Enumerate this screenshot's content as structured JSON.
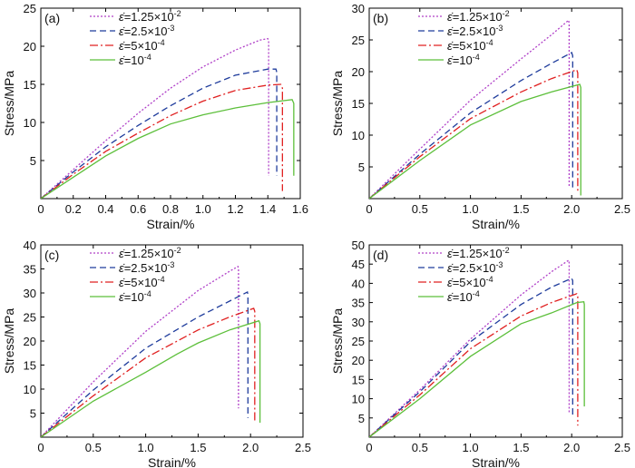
{
  "chart_data": [
    {
      "type": "line",
      "panel_label": "(a)",
      "xlabel": "Strain/%",
      "ylabel": "Stress/MPa",
      "xlim": [
        0,
        1.6
      ],
      "ylim": [
        0,
        25
      ],
      "xticks": [
        0,
        0.2,
        0.4,
        0.6,
        0.8,
        1.0,
        1.2,
        1.4,
        1.6
      ],
      "xtick_labels": [
        "0",
        "0.2",
        "0.4",
        "0.6",
        "0.8",
        "1.0",
        "1.2",
        "1.4",
        "1.6"
      ],
      "yticks": [
        5,
        10,
        15,
        20,
        25
      ],
      "ytick_labels": [
        "5",
        "10",
        "15",
        "20",
        "25"
      ],
      "series": [
        {
          "name": "1.25×10",
          "exp": "-2",
          "color": "#b040c8",
          "dash": "2,2",
          "points": [
            [
              0,
              0
            ],
            [
              0.2,
              3.8
            ],
            [
              0.4,
              7.6
            ],
            [
              0.6,
              11.2
            ],
            [
              0.8,
              14.5
            ],
            [
              1.0,
              17.3
            ],
            [
              1.2,
              19.5
            ],
            [
              1.35,
              20.8
            ],
            [
              1.4,
              21.0
            ],
            [
              1.405,
              20.7
            ],
            [
              1.405,
              3.0
            ]
          ]
        },
        {
          "name": "2.5×10",
          "exp": "-3",
          "color": "#1f3c9c",
          "dash": "7,4",
          "points": [
            [
              0,
              0
            ],
            [
              0.2,
              3.5
            ],
            [
              0.4,
              6.8
            ],
            [
              0.6,
              9.6
            ],
            [
              0.8,
              12.2
            ],
            [
              1.0,
              14.5
            ],
            [
              1.2,
              16.2
            ],
            [
              1.4,
              17.0
            ],
            [
              1.45,
              17.0
            ],
            [
              1.455,
              16.6
            ],
            [
              1.455,
              3.0
            ]
          ]
        },
        {
          "name": "5×10",
          "exp": "-4",
          "color": "#e02020",
          "dash": "9,3,2,3",
          "points": [
            [
              0,
              0
            ],
            [
              0.2,
              3.2
            ],
            [
              0.4,
              6.2
            ],
            [
              0.6,
              8.6
            ],
            [
              0.8,
              10.9
            ],
            [
              1.0,
              12.8
            ],
            [
              1.2,
              14.2
            ],
            [
              1.4,
              14.9
            ],
            [
              1.48,
              15.0
            ],
            [
              1.49,
              14.5
            ],
            [
              1.49,
              1.0
            ]
          ]
        },
        {
          "name": "10",
          "exp": "-4",
          "color": "#5cbf3a",
          "dash": "",
          "points": [
            [
              0,
              0
            ],
            [
              0.2,
              2.8
            ],
            [
              0.4,
              5.6
            ],
            [
              0.6,
              7.9
            ],
            [
              0.8,
              9.8
            ],
            [
              1.0,
              11.0
            ],
            [
              1.2,
              11.9
            ],
            [
              1.4,
              12.6
            ],
            [
              1.55,
              13.0
            ],
            [
              1.56,
              12.5
            ],
            [
              1.56,
              3.0
            ]
          ]
        }
      ]
    },
    {
      "type": "line",
      "panel_label": "(b)",
      "xlabel": "Strain/%",
      "ylabel": "Stress/MPa",
      "xlim": [
        0,
        2.5
      ],
      "ylim": [
        0,
        30
      ],
      "xticks": [
        0,
        0.5,
        1.0,
        1.5,
        2.0,
        2.5
      ],
      "xtick_labels": [
        "0",
        "0.5",
        "1.0",
        "1.5",
        "2.0",
        "2.5"
      ],
      "yticks": [
        5,
        10,
        15,
        20,
        25,
        30
      ],
      "ytick_labels": [
        "5",
        "10",
        "15",
        "20",
        "25",
        "30"
      ],
      "series": [
        {
          "name": "1.25×10",
          "exp": "-2",
          "color": "#b040c8",
          "dash": "2,2",
          "points": [
            [
              0,
              0
            ],
            [
              0.5,
              7.8
            ],
            [
              1.0,
              15.5
            ],
            [
              1.5,
              22.0
            ],
            [
              1.8,
              25.8
            ],
            [
              1.97,
              28.1
            ],
            [
              1.975,
              27.5
            ],
            [
              1.975,
              2.0
            ]
          ]
        },
        {
          "name": "2.5×10",
          "exp": "-3",
          "color": "#1f3c9c",
          "dash": "7,4",
          "points": [
            [
              0,
              0
            ],
            [
              0.5,
              7.0
            ],
            [
              1.0,
              13.5
            ],
            [
              1.5,
              18.6
            ],
            [
              1.8,
              21.3
            ],
            [
              2.0,
              23.0
            ],
            [
              2.01,
              22.5
            ],
            [
              2.01,
              1.5
            ]
          ]
        },
        {
          "name": "5×10",
          "exp": "-4",
          "color": "#e02020",
          "dash": "9,3,2,3",
          "points": [
            [
              0,
              0
            ],
            [
              0.5,
              6.6
            ],
            [
              1.0,
              12.6
            ],
            [
              1.5,
              16.8
            ],
            [
              1.8,
              18.9
            ],
            [
              2.05,
              20.3
            ],
            [
              2.06,
              19.8
            ],
            [
              2.06,
              1.0
            ]
          ]
        },
        {
          "name": "10",
          "exp": "-4",
          "color": "#5cbf3a",
          "dash": "",
          "points": [
            [
              0,
              0
            ],
            [
              0.5,
              6.0
            ],
            [
              1.0,
              11.6
            ],
            [
              1.5,
              15.3
            ],
            [
              1.8,
              16.8
            ],
            [
              2.08,
              18.0
            ],
            [
              2.09,
              17.5
            ],
            [
              2.09,
              0.5
            ]
          ]
        }
      ]
    },
    {
      "type": "line",
      "panel_label": "(c)",
      "xlabel": "Strain/%",
      "ylabel": "Stress/MPa",
      "xlim": [
        0,
        2.5
      ],
      "ylim": [
        0,
        40
      ],
      "xticks": [
        0,
        0.5,
        1.0,
        1.5,
        2.0,
        2.5
      ],
      "xtick_labels": [
        "0",
        "0.5",
        "1.0",
        "1.5",
        "2.0",
        "2.5"
      ],
      "yticks": [
        5,
        10,
        15,
        20,
        25,
        30,
        35,
        40
      ],
      "ytick_labels": [
        "5",
        "10",
        "15",
        "20",
        "25",
        "30",
        "35",
        "40"
      ],
      "series": [
        {
          "name": "1.25×10",
          "exp": "-2",
          "color": "#b040c8",
          "dash": "2,2",
          "points": [
            [
              0,
              0
            ],
            [
              0.5,
              11.5
            ],
            [
              1.0,
              22.0
            ],
            [
              1.5,
              30.5
            ],
            [
              1.8,
              34.5
            ],
            [
              1.88,
              35.5
            ],
            [
              1.885,
              35.0
            ],
            [
              1.885,
              6.0
            ]
          ]
        },
        {
          "name": "2.5×10",
          "exp": "-3",
          "color": "#1f3c9c",
          "dash": "7,4",
          "points": [
            [
              0,
              0
            ],
            [
              0.5,
              9.8
            ],
            [
              1.0,
              18.5
            ],
            [
              1.5,
              25.0
            ],
            [
              1.8,
              28.3
            ],
            [
              1.97,
              30.2
            ],
            [
              1.975,
              29.6
            ],
            [
              1.975,
              4.0
            ]
          ]
        },
        {
          "name": "5×10",
          "exp": "-4",
          "color": "#e02020",
          "dash": "9,3,2,3",
          "points": [
            [
              0,
              0
            ],
            [
              0.5,
              8.6
            ],
            [
              1.0,
              16.5
            ],
            [
              1.5,
              22.3
            ],
            [
              1.8,
              25.0
            ],
            [
              2.03,
              26.8
            ],
            [
              2.04,
              26.2
            ],
            [
              2.04,
              3.0
            ]
          ]
        },
        {
          "name": "10",
          "exp": "-4",
          "color": "#5cbf3a",
          "dash": "",
          "points": [
            [
              0,
              0
            ],
            [
              0.5,
              7.5
            ],
            [
              1.0,
              13.5
            ],
            [
              1.3,
              17.3
            ],
            [
              1.5,
              19.6
            ],
            [
              1.8,
              22.3
            ],
            [
              2.08,
              24.2
            ],
            [
              2.09,
              23.6
            ],
            [
              2.09,
              3.0
            ]
          ]
        }
      ]
    },
    {
      "type": "line",
      "panel_label": "(d)",
      "xlabel": "Strain/%",
      "ylabel": "Stress/MPa",
      "xlim": [
        0,
        2.5
      ],
      "ylim": [
        0,
        50
      ],
      "xticks": [
        0,
        0.5,
        1.0,
        1.5,
        2.0,
        2.5
      ],
      "xtick_labels": [
        "0",
        "0.5",
        "1.0",
        "1.5",
        "2.0",
        "2.5"
      ],
      "yticks": [
        5,
        10,
        15,
        20,
        25,
        30,
        35,
        40,
        45,
        50
      ],
      "ytick_labels": [
        "5",
        "10",
        "15",
        "20",
        "25",
        "30",
        "35",
        "40",
        "45",
        "50"
      ],
      "series": [
        {
          "name": "1.25×10",
          "exp": "-2",
          "color": "#b040c8",
          "dash": "2,2",
          "points": [
            [
              0,
              0
            ],
            [
              0.5,
              12.3
            ],
            [
              1.0,
              25.5
            ],
            [
              1.5,
              37.0
            ],
            [
              1.8,
              43.0
            ],
            [
              1.97,
              46.0
            ],
            [
              1.975,
              45.3
            ],
            [
              1.975,
              6.0
            ]
          ]
        },
        {
          "name": "2.5×10",
          "exp": "-3",
          "color": "#1f3c9c",
          "dash": "7,4",
          "points": [
            [
              0,
              0
            ],
            [
              0.5,
              11.8
            ],
            [
              1.0,
              24.8
            ],
            [
              1.5,
              34.5
            ],
            [
              1.8,
              39.0
            ],
            [
              2.0,
              41.3
            ],
            [
              2.01,
              40.7
            ],
            [
              2.01,
              5.0
            ]
          ]
        },
        {
          "name": "5×10",
          "exp": "-4",
          "color": "#e02020",
          "dash": "9,3,2,3",
          "points": [
            [
              0,
              0
            ],
            [
              0.5,
              11.0
            ],
            [
              1.0,
              23.0
            ],
            [
              1.5,
              31.5
            ],
            [
              1.8,
              35.0
            ],
            [
              2.05,
              37.3
            ],
            [
              2.06,
              36.5
            ],
            [
              2.06,
              3.0
            ]
          ]
        },
        {
          "name": "10",
          "exp": "-4",
          "color": "#5cbf3a",
          "dash": "",
          "points": [
            [
              0,
              0
            ],
            [
              0.5,
              10.0
            ],
            [
              1.0,
              21.0
            ],
            [
              1.5,
              29.5
            ],
            [
              1.8,
              32.3
            ],
            [
              2.05,
              35.0
            ],
            [
              2.12,
              35.2
            ],
            [
              2.125,
              34.5
            ],
            [
              2.125,
              8.0
            ]
          ]
        }
      ]
    }
  ]
}
